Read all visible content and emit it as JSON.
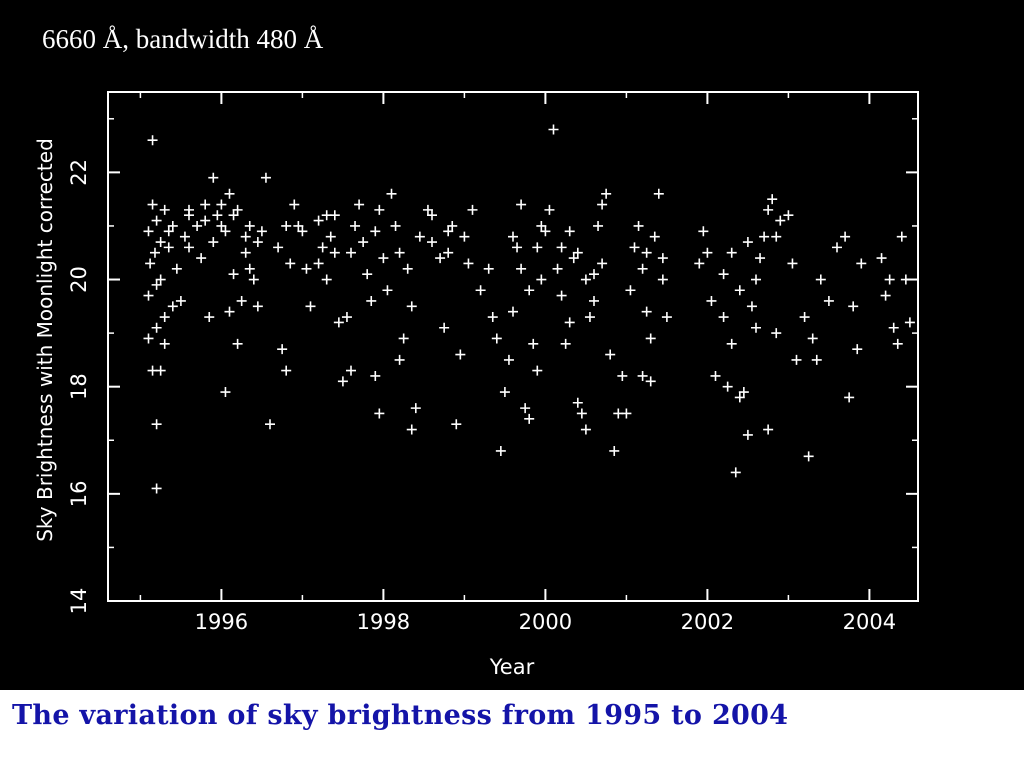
{
  "header": {
    "band_label": "6660 Å, bandwidth 480 Å"
  },
  "caption": {
    "text": "The variation of sky brightness  from 1995 to 2004"
  },
  "colors": {
    "panel_background": "#000000",
    "marks": "#ffffff",
    "caption": "#1414a8"
  },
  "chart_data": {
    "type": "scatter",
    "marker": "plus",
    "xlabel": "Year",
    "ylabel": "Sky Brightness with Moonlight corrected",
    "xlim": [
      1994.6,
      2004.6
    ],
    "ylim": [
      14,
      23.5
    ],
    "xticks": [
      1996,
      1998,
      2000,
      2002,
      2004
    ],
    "yticks": [
      14,
      16,
      18,
      20,
      22
    ],
    "grid": false,
    "points": [
      [
        1995.15,
        22.6
      ],
      [
        1995.2,
        16.1
      ],
      [
        1995.2,
        17.3
      ],
      [
        1995.15,
        18.3
      ],
      [
        1995.25,
        18.3
      ],
      [
        1995.1,
        18.9
      ],
      [
        1995.2,
        19.1
      ],
      [
        1995.3,
        19.3
      ],
      [
        1995.1,
        19.7
      ],
      [
        1995.2,
        19.9
      ],
      [
        1995.12,
        20.3
      ],
      [
        1995.18,
        20.5
      ],
      [
        1995.25,
        20.7
      ],
      [
        1995.1,
        20.9
      ],
      [
        1995.2,
        21.1
      ],
      [
        1995.3,
        21.3
      ],
      [
        1995.15,
        21.4
      ],
      [
        1995.4,
        21.0
      ],
      [
        1995.35,
        20.6
      ],
      [
        1995.4,
        19.5
      ],
      [
        1995.3,
        18.8
      ],
      [
        1995.5,
        19.6
      ],
      [
        1995.55,
        20.8
      ],
      [
        1995.6,
        21.2
      ],
      [
        1995.7,
        21.0
      ],
      [
        1995.8,
        21.4
      ],
      [
        1995.75,
        20.4
      ],
      [
        1995.85,
        19.3
      ],
      [
        1995.9,
        21.9
      ],
      [
        1995.95,
        21.2
      ],
      [
        1996.0,
        21.4
      ],
      [
        1996.05,
        20.9
      ],
      [
        1996.1,
        21.6
      ],
      [
        1996.15,
        20.1
      ],
      [
        1996.2,
        21.3
      ],
      [
        1996.1,
        19.4
      ],
      [
        1996.05,
        17.9
      ],
      [
        1996.2,
        18.8
      ],
      [
        1996.25,
        19.6
      ],
      [
        1996.3,
        20.5
      ],
      [
        1996.35,
        21.0
      ],
      [
        1996.4,
        20.0
      ],
      [
        1996.45,
        19.5
      ],
      [
        1996.5,
        20.9
      ],
      [
        1996.55,
        21.9
      ],
      [
        1996.6,
        17.3
      ],
      [
        1996.7,
        20.6
      ],
      [
        1996.8,
        21.0
      ],
      [
        1996.85,
        20.3
      ],
      [
        1996.75,
        18.7
      ],
      [
        1996.8,
        18.3
      ],
      [
        1996.9,
        21.4
      ],
      [
        1996.95,
        21.0
      ],
      [
        1997.0,
        20.9
      ],
      [
        1997.05,
        20.2
      ],
      [
        1997.1,
        19.5
      ],
      [
        1997.2,
        21.1
      ],
      [
        1997.25,
        20.6
      ],
      [
        1997.3,
        20.0
      ],
      [
        1997.35,
        20.8
      ],
      [
        1997.4,
        21.2
      ],
      [
        1997.45,
        19.2
      ],
      [
        1997.5,
        18.1
      ],
      [
        1997.55,
        19.3
      ],
      [
        1997.6,
        20.5
      ],
      [
        1997.6,
        18.3
      ],
      [
        1997.65,
        21.0
      ],
      [
        1997.7,
        21.4
      ],
      [
        1997.75,
        20.7
      ],
      [
        1997.8,
        20.1
      ],
      [
        1997.85,
        19.6
      ],
      [
        1997.9,
        20.9
      ],
      [
        1997.95,
        21.3
      ],
      [
        1998.0,
        20.4
      ],
      [
        1998.05,
        19.8
      ],
      [
        1998.1,
        21.6
      ],
      [
        1998.15,
        21.0
      ],
      [
        1998.2,
        18.5
      ],
      [
        1998.25,
        18.9
      ],
      [
        1998.3,
        20.2
      ],
      [
        1998.35,
        19.5
      ],
      [
        1998.4,
        17.6
      ],
      [
        1998.45,
        20.8
      ],
      [
        1998.35,
        17.2
      ],
      [
        1997.9,
        18.2
      ],
      [
        1997.95,
        17.5
      ],
      [
        1998.55,
        21.3
      ],
      [
        1998.6,
        21.2
      ],
      [
        1998.7,
        20.4
      ],
      [
        1998.75,
        19.1
      ],
      [
        1998.8,
        20.9
      ],
      [
        1998.85,
        21.0
      ],
      [
        1998.9,
        17.3
      ],
      [
        1998.95,
        18.6
      ],
      [
        1999.0,
        20.8
      ],
      [
        1999.05,
        20.3
      ],
      [
        1999.1,
        21.3
      ],
      [
        1999.2,
        19.8
      ],
      [
        1999.3,
        20.2
      ],
      [
        1999.35,
        19.3
      ],
      [
        1999.4,
        18.9
      ],
      [
        1999.5,
        17.9
      ],
      [
        1999.45,
        16.8
      ],
      [
        1999.55,
        18.5
      ],
      [
        1999.6,
        19.4
      ],
      [
        1999.65,
        20.6
      ],
      [
        1999.7,
        21.4
      ],
      [
        1999.75,
        17.6
      ],
      [
        1999.8,
        17.4
      ],
      [
        1999.85,
        18.8
      ],
      [
        1999.9,
        18.3
      ],
      [
        1999.95,
        20.0
      ],
      [
        2000.0,
        20.9
      ],
      [
        2000.05,
        21.3
      ],
      [
        2000.1,
        22.8
      ],
      [
        2000.15,
        20.2
      ],
      [
        2000.2,
        19.7
      ],
      [
        2000.25,
        18.8
      ],
      [
        2000.3,
        19.2
      ],
      [
        2000.35,
        20.4
      ],
      [
        2000.4,
        17.7
      ],
      [
        2000.45,
        17.5
      ],
      [
        2000.5,
        17.2
      ],
      [
        2000.55,
        19.3
      ],
      [
        2000.6,
        20.1
      ],
      [
        2000.65,
        21.0
      ],
      [
        2000.7,
        21.4
      ],
      [
        2000.75,
        21.6
      ],
      [
        2000.8,
        18.6
      ],
      [
        2000.85,
        16.8
      ],
      [
        2000.9,
        17.5
      ],
      [
        2000.95,
        18.2
      ],
      [
        2001.0,
        17.5
      ],
      [
        2001.05,
        19.8
      ],
      [
        2001.1,
        20.6
      ],
      [
        2001.15,
        21.0
      ],
      [
        2001.2,
        20.2
      ],
      [
        2001.25,
        19.4
      ],
      [
        2001.3,
        18.9
      ],
      [
        2001.35,
        20.8
      ],
      [
        2001.4,
        21.6
      ],
      [
        2001.45,
        20.0
      ],
      [
        2001.5,
        19.3
      ],
      [
        2001.3,
        18.1
      ],
      [
        2001.2,
        18.2
      ],
      [
        2000.3,
        20.9
      ],
      [
        2000.4,
        20.5
      ],
      [
        2000.5,
        20.0
      ],
      [
        2000.6,
        19.6
      ],
      [
        2000.7,
        20.3
      ],
      [
        1999.6,
        20.8
      ],
      [
        1999.7,
        20.2
      ],
      [
        1999.8,
        19.8
      ],
      [
        1999.9,
        20.6
      ],
      [
        1997.2,
        20.3
      ],
      [
        1997.3,
        21.2
      ],
      [
        1997.4,
        20.5
      ],
      [
        1996.45,
        20.7
      ],
      [
        1996.35,
        20.2
      ],
      [
        1995.9,
        20.7
      ],
      [
        1995.8,
        21.1
      ],
      [
        1995.6,
        20.6
      ],
      [
        1995.45,
        20.2
      ],
      [
        1995.25,
        20.0
      ],
      [
        1995.35,
        20.9
      ],
      [
        1995.6,
        21.3
      ],
      [
        1996.0,
        21.0
      ],
      [
        1996.15,
        21.2
      ],
      [
        1996.3,
        20.8
      ],
      [
        1998.2,
        20.5
      ],
      [
        1998.6,
        20.7
      ],
      [
        1998.8,
        20.5
      ],
      [
        1999.95,
        21.0
      ],
      [
        2000.2,
        20.6
      ],
      [
        2001.25,
        20.5
      ],
      [
        2001.45,
        20.4
      ],
      [
        2001.9,
        20.3
      ],
      [
        2001.95,
        20.9
      ],
      [
        2002.0,
        20.5
      ],
      [
        2002.05,
        19.6
      ],
      [
        2002.1,
        18.2
      ],
      [
        2002.2,
        19.3
      ],
      [
        2002.25,
        18.0
      ],
      [
        2002.3,
        18.8
      ],
      [
        2002.35,
        16.4
      ],
      [
        2002.4,
        17.8
      ],
      [
        2002.45,
        17.9
      ],
      [
        2002.5,
        17.1
      ],
      [
        2002.55,
        19.5
      ],
      [
        2002.6,
        20.0
      ],
      [
        2002.65,
        20.4
      ],
      [
        2002.7,
        20.8
      ],
      [
        2002.75,
        21.3
      ],
      [
        2002.8,
        21.5
      ],
      [
        2002.85,
        20.8
      ],
      [
        2002.9,
        21.1
      ],
      [
        2002.75,
        17.2
      ],
      [
        2002.85,
        19.0
      ],
      [
        2003.0,
        21.2
      ],
      [
        2003.05,
        20.3
      ],
      [
        2003.1,
        18.5
      ],
      [
        2003.2,
        19.3
      ],
      [
        2003.25,
        16.7
      ],
      [
        2003.3,
        18.9
      ],
      [
        2003.35,
        18.5
      ],
      [
        2003.4,
        20.0
      ],
      [
        2003.5,
        19.6
      ],
      [
        2003.6,
        20.6
      ],
      [
        2003.7,
        20.8
      ],
      [
        2003.75,
        17.8
      ],
      [
        2003.8,
        19.5
      ],
      [
        2003.85,
        18.7
      ],
      [
        2003.9,
        20.3
      ],
      [
        2004.15,
        20.4
      ],
      [
        2004.2,
        19.7
      ],
      [
        2004.25,
        20.0
      ],
      [
        2004.3,
        19.1
      ],
      [
        2004.35,
        18.8
      ],
      [
        2004.4,
        20.8
      ],
      [
        2004.45,
        20.0
      ],
      [
        2004.5,
        19.2
      ],
      [
        2002.3,
        20.5
      ],
      [
        2002.4,
        19.8
      ],
      [
        2002.5,
        20.7
      ],
      [
        2002.6,
        19.1
      ],
      [
        2002.2,
        20.1
      ]
    ]
  }
}
